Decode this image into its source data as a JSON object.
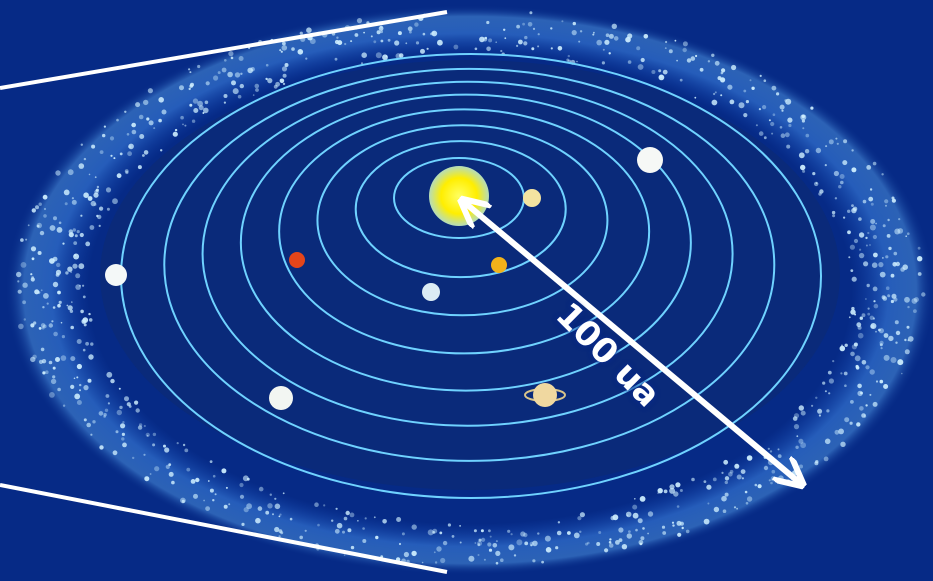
{
  "diagram": {
    "distance_label": "100 ua"
  },
  "colors": {
    "background": "#062a86",
    "disk": "#0a2a7a",
    "orbit": "#6fd2ff",
    "belt_particle": "#cfefff",
    "sun": "#ffee00",
    "arrow": "#ffffff"
  },
  "objects": [
    {
      "name": "sun",
      "color": "#ffee10"
    },
    {
      "name": "planet-1",
      "color": "#f3e3a0"
    },
    {
      "name": "planet-2",
      "color": "#f2b21a"
    },
    {
      "name": "planet-3",
      "color": "#dcecf4"
    },
    {
      "name": "planet-4",
      "color": "#e4451a"
    },
    {
      "name": "planet-5",
      "color": "#f0d8a0"
    },
    {
      "name": "planet-6",
      "color": "#f2f6f2"
    },
    {
      "name": "planet-7",
      "color": "#f4f8f8"
    },
    {
      "name": "planet-8",
      "color": "#f6f8f6"
    }
  ]
}
